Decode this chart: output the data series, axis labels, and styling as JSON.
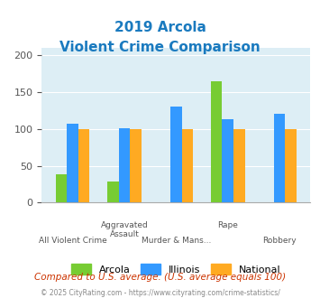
{
  "title_line1": "2019 Arcola",
  "title_line2": "Violent Crime Comparison",
  "title_color": "#1a7abf",
  "categories": [
    "All Violent Crime",
    "Aggravated\nAssault",
    "Murder & Mans...",
    "Rape",
    "Robbery"
  ],
  "arcola": [
    38,
    29,
    0,
    165,
    0
  ],
  "illinois": [
    107,
    101,
    130,
    113,
    120
  ],
  "national": [
    100,
    100,
    100,
    100,
    100
  ],
  "arcola_color": "#77cc33",
  "illinois_color": "#3399ff",
  "national_color": "#ffaa22",
  "ylim": [
    0,
    210
  ],
  "yticks": [
    0,
    50,
    100,
    150,
    200
  ],
  "bg_color": "#ddeef5",
  "plot_bg": "#ddeef5",
  "footer_note": "Compared to U.S. average. (U.S. average equals 100)",
  "footer_copy": "© 2025 CityRating.com - https://www.cityrating.com/crime-statistics/",
  "legend_labels": [
    "Arcola",
    "Illinois",
    "National"
  ],
  "xlabel_top": [
    "All Violent Crime",
    "Aggravated\nAssault",
    "Murder & Mans...",
    "Rape",
    "Robbery"
  ]
}
